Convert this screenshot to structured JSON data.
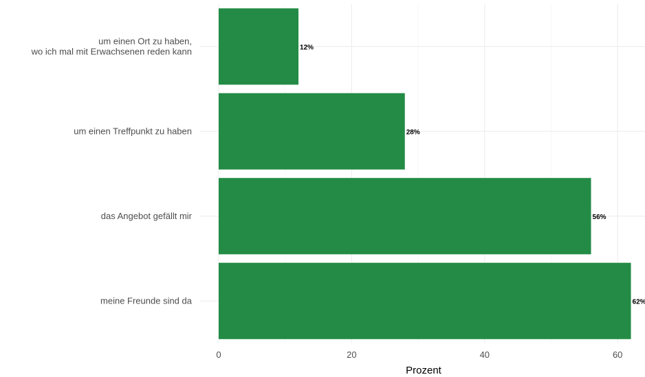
{
  "chart_data": {
    "type": "bar",
    "orientation": "horizontal",
    "categories": [
      "meine Freunde sind da",
      "das Angebot gefällt mir",
      "um einen Treffpunkt zu haben",
      [
        "um einen Ort zu haben,",
        "wo ich mal mit Erwachsenen reden kann"
      ]
    ],
    "values": [
      62,
      56,
      28,
      12
    ],
    "value_labels": [
      "62%",
      "56%",
      "28%",
      "12%"
    ],
    "xlabel": "Prozent",
    "ylabel": "",
    "xlim": [
      0,
      64
    ],
    "xticks": [
      0,
      20,
      40,
      60
    ],
    "xtick_labels": [
      "0",
      "20",
      "40",
      "60"
    ],
    "bar_color": "#238b45",
    "grid": true,
    "legend": "none"
  }
}
